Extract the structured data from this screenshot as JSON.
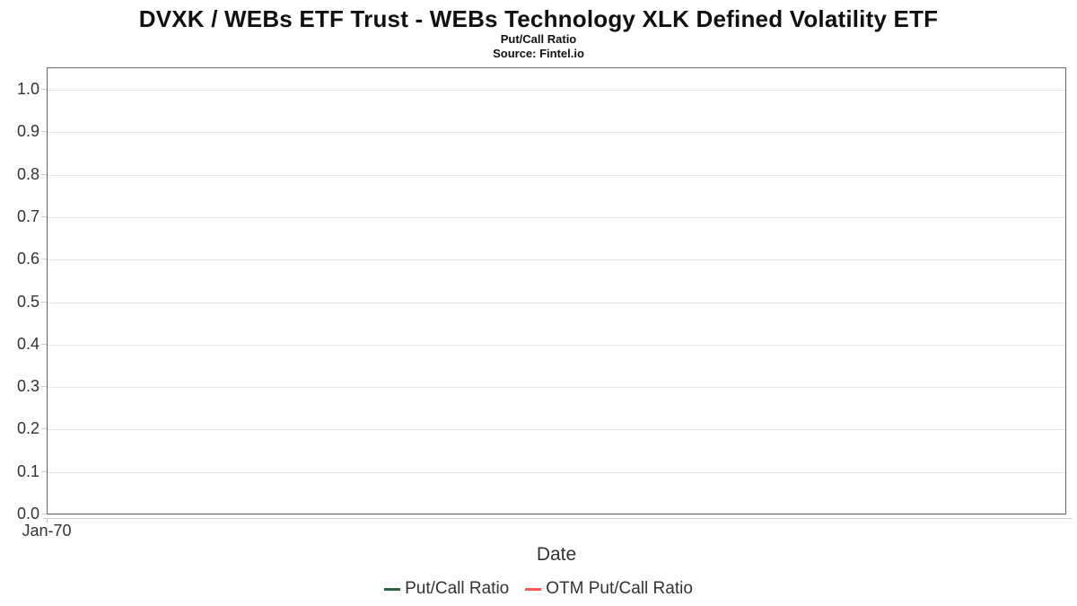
{
  "header": {
    "title": "DVXK / WEBs ETF Trust - WEBs Technology XLK Defined Volatility ETF",
    "subtitle": "Put/Call Ratio",
    "source": "Source: Fintel.io"
  },
  "axes": {
    "x_title": "Date",
    "x_tick_labels": [
      "Jan-70"
    ],
    "y_tick_labels": [
      "0.0",
      "0.1",
      "0.2",
      "0.3",
      "0.4",
      "0.5",
      "0.6",
      "0.7",
      "0.8",
      "0.9",
      "1.0"
    ]
  },
  "legend": {
    "items": [
      {
        "label": "Put/Call Ratio",
        "color": "#2e6642"
      },
      {
        "label": "OTM Put/Call Ratio",
        "color": "#fa5757"
      }
    ]
  },
  "colors": {
    "plot_border": "#666666",
    "gridline": "#e6e6e6",
    "axis_line": "#cccccc",
    "tick": "#cccccc",
    "axis_text": "#333333",
    "title_text": "#111111"
  },
  "chart_data": {
    "type": "line",
    "title": "DVXK / WEBs ETF Trust - WEBs Technology XLK Defined Volatility ETF",
    "subtitle": "Put/Call Ratio",
    "source": "Source: Fintel.io",
    "xlabel": "Date",
    "ylabel": "",
    "ylim": [
      0.0,
      1.05
    ],
    "yticks": [
      0.0,
      0.1,
      0.2,
      0.3,
      0.4,
      0.5,
      0.6,
      0.7,
      0.8,
      0.9,
      1.0
    ],
    "xticks": [
      "Jan-70"
    ],
    "grid": "horizontal",
    "legend_position": "bottom-center",
    "series": [
      {
        "name": "Put/Call Ratio",
        "color": "#2e6642",
        "x": [],
        "y": []
      },
      {
        "name": "OTM Put/Call Ratio",
        "color": "#fa5757",
        "x": [],
        "y": []
      }
    ]
  }
}
